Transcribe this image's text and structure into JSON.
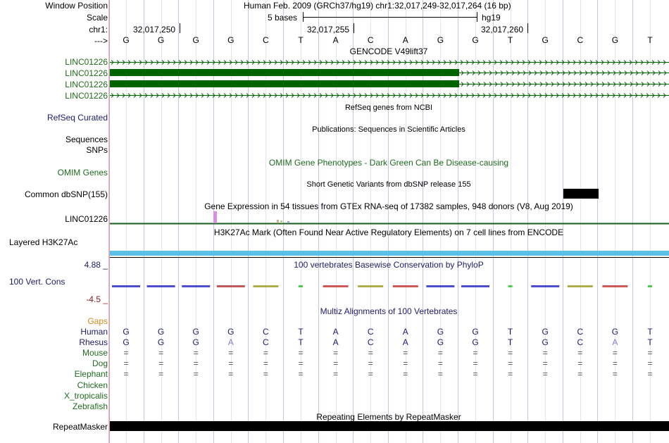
{
  "header": {
    "window_position_label": "Window Position",
    "window_position_value": "Human Feb. 2009 (GRCh37/hg19)   chr1:32,017,249-32,017,264 (16 bp)",
    "scale_label": "Scale",
    "scale_value": "5 bases",
    "scale_assembly": "hg19",
    "chrom_label": "chr1:",
    "positions": [
      "32,017,250",
      "32,017,255",
      "32,017,260"
    ],
    "strand_label": "--->",
    "sequence": [
      "G",
      "G",
      "G",
      "G",
      "C",
      "T",
      "A",
      "C",
      "A",
      "G",
      "G",
      "T",
      "G",
      "C",
      "G",
      "T"
    ]
  },
  "tracks": {
    "gencode_title": "GENCODE V49lift37",
    "gencode_labels": [
      "LINC01226",
      "LINC01226",
      "LINC01226",
      "LINC01226"
    ],
    "refseq_label": "RefSeq Curated",
    "refseq_title": "RefSeq genes from NCBI",
    "pubs_label": "Sequences",
    "pubs_title": "Publications: Sequences in Scientific Articles",
    "snps_label": "SNPs",
    "omim_label": "OMIM Genes",
    "omim_title": "OMIM Gene Phenotypes - Dark Green Can Be Disease-causing",
    "dbsnp_label": "Common dbSNP(155)",
    "dbsnp_title": "Short Genetic Variants from dbSNP release 155",
    "gtex_label": "LINC01226",
    "gtex_title": "Gene Expression in 54 tissues from GTEx RNA-seq of 17382 samples, 948 donors (V8, Aug 2019)",
    "h3k27_label": "Layered H3K27Ac",
    "h3k27_title": "H3K27Ac Mark (Often Found Near Active Regulatory Elements) on 7 cell lines from ENCODE",
    "cons_max": "4.88 _",
    "cons_label": "100 Vert. Cons",
    "cons_min": "-4.5 _",
    "cons_title": "100 vertebrates Basewise Conservation by PhyloP",
    "multiz_title": "Multiz Alignments of 100 Vertebrates",
    "repeat_title": "Repeating Elements by RepeatMasker",
    "repeat_label": "RepeatMasker"
  },
  "alignment": {
    "gaps_label": "Gaps",
    "species": [
      {
        "name": "Human",
        "bases": [
          "G",
          "G",
          "G",
          "G",
          "C",
          "T",
          "A",
          "C",
          "A",
          "G",
          "G",
          "T",
          "G",
          "C",
          "G",
          "T"
        ]
      },
      {
        "name": "Rhesus",
        "bases": [
          "G",
          "G",
          "G",
          "A",
          "C",
          "T",
          "A",
          "C",
          "A",
          "G",
          "G",
          "T",
          "G",
          "C",
          "A",
          "T"
        ]
      },
      {
        "name": "Mouse",
        "bases": [
          "=",
          "=",
          "=",
          "=",
          "=",
          "=",
          "=",
          "=",
          "=",
          "=",
          "=",
          "=",
          "=",
          "=",
          "=",
          "="
        ]
      },
      {
        "name": "Dog",
        "bases": [
          "=",
          "=",
          "=",
          "=",
          "=",
          "=",
          "=",
          "=",
          "=",
          "=",
          "=",
          "=",
          "=",
          "=",
          "=",
          "="
        ]
      },
      {
        "name": "Elephant",
        "bases": [
          "=",
          "=",
          "=",
          "=",
          "=",
          "=",
          "=",
          "=",
          "=",
          "=",
          "=",
          "=",
          "=",
          "=",
          "=",
          "="
        ]
      },
      {
        "name": "Chicken",
        "bases": []
      },
      {
        "name": "X_tropicalis",
        "bases": []
      },
      {
        "name": "Zebrafish",
        "bases": []
      }
    ]
  },
  "colors": {
    "gene_green": "#006400",
    "navy": "#1c1c6b",
    "label_green": "#1f6b1f",
    "gaps_orange": "#d08a1c",
    "h3k27_blue": "#5bc0e8",
    "guideline": "#d6d6ea",
    "left_border": "#e89a9a"
  }
}
